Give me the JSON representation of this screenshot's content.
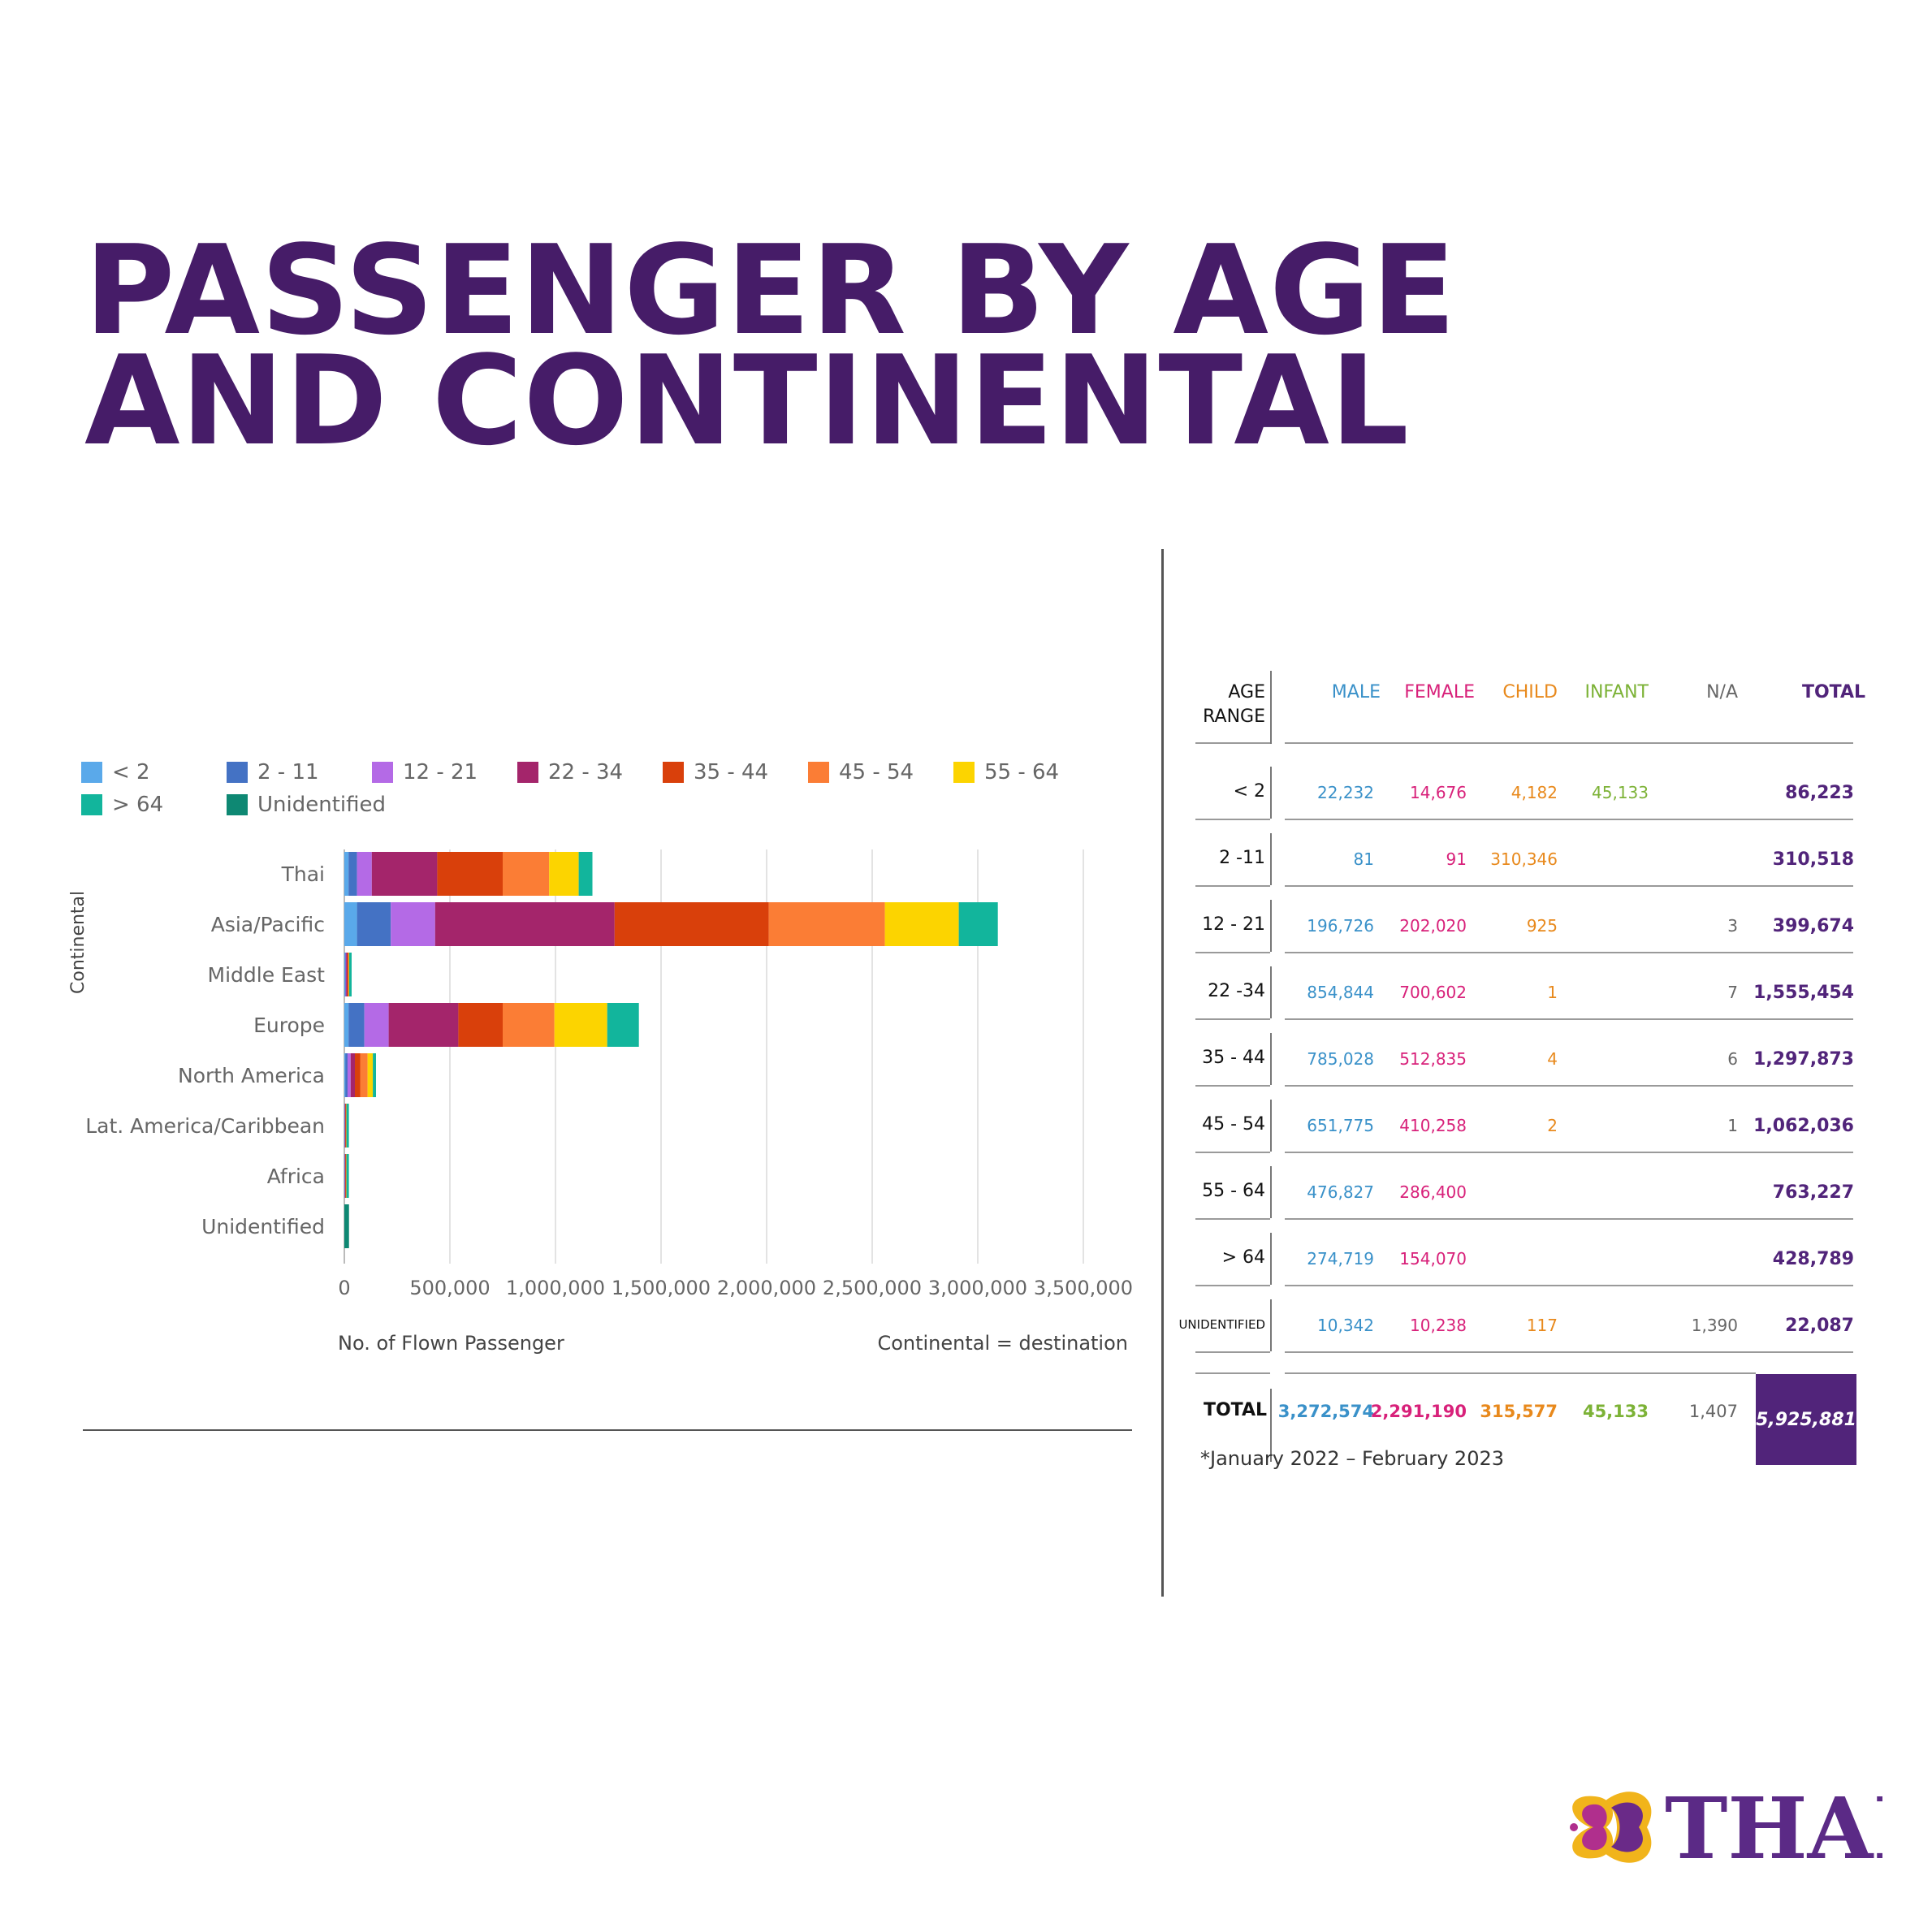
{
  "title_lines": [
    "PASSENGER BY AGE",
    "AND CONTINENTAL"
  ],
  "colors": {
    "brand_purple": "#461c68",
    "male": "#3a91c9",
    "female": "#d8217a",
    "child": "#e8891c",
    "infant": "#7cb236",
    "na": "#666666",
    "total": "#51247a"
  },
  "chart_data": {
    "type": "bar",
    "orientation": "horizontal",
    "stacked": true,
    "ylabel": "Continental",
    "xlabel": "No. of Flown Passenger",
    "xlim": [
      0,
      3500000
    ],
    "xticks": [
      "0",
      "500,000",
      "1,000,000",
      "1,500,000",
      "2,000,000",
      "2,500,000",
      "3,000,000",
      "3,500,000"
    ],
    "xtick_values": [
      0,
      500000,
      1000000,
      1500000,
      2000000,
      2500000,
      3000000,
      3500000
    ],
    "legend_position": "top",
    "grid": true,
    "categories": [
      "Thai",
      "Asia/Pacific",
      "Middle East",
      "Europe",
      "North America",
      "Lat. America/Caribbean",
      "Africa",
      "Unidentified"
    ],
    "series": [
      {
        "name": "< 2",
        "color": "#5aa9ea",
        "values": [
          20000,
          60000,
          3000,
          20000,
          5000,
          1000,
          1000,
          0
        ]
      },
      {
        "name": "2 - 11",
        "color": "#4472c4",
        "values": [
          40000,
          160000,
          3000,
          75000,
          10000,
          1000,
          1000,
          0
        ]
      },
      {
        "name": "12 - 21",
        "color": "#b46ae6",
        "values": [
          70000,
          210000,
          3000,
          115000,
          15000,
          1000,
          1000,
          0
        ]
      },
      {
        "name": "22 - 34",
        "color": "#a4256b",
        "values": [
          310000,
          850000,
          5000,
          330000,
          20000,
          2000,
          2000,
          0
        ]
      },
      {
        "name": "35 - 44",
        "color": "#d9400b",
        "values": [
          310000,
          730000,
          4000,
          210000,
          25000,
          2000,
          2000,
          0
        ]
      },
      {
        "name": "45 - 54",
        "color": "#fb7d35",
        "values": [
          220000,
          550000,
          3000,
          245000,
          35000,
          2000,
          2000,
          0
        ]
      },
      {
        "name": "55 - 64",
        "color": "#fcd400",
        "values": [
          140000,
          350000,
          2000,
          250000,
          25000,
          1000,
          1000,
          0
        ]
      },
      {
        "name": "> 64",
        "color": "#12b59c",
        "values": [
          65000,
          185000,
          1000,
          150000,
          15000,
          1000,
          1000,
          0
        ]
      },
      {
        "name": "Unidentified",
        "color": "#0e8873",
        "values": [
          0,
          0,
          0,
          0,
          0,
          0,
          0,
          22087
        ]
      }
    ]
  },
  "chart_notes": {
    "destination_note": "Continental = destination"
  },
  "table": {
    "headers": {
      "age_range_line1": "AGE",
      "age_range_line2": "RANGE",
      "male": "MALE",
      "female": "FEMALE",
      "child": "CHILD",
      "infant": "INFANT",
      "na": "N/A",
      "total": "TOTAL"
    },
    "rows": [
      {
        "label": "< 2",
        "male": "22,232",
        "female": "14,676",
        "child": "4,182",
        "infant": "45,133",
        "na": "",
        "total": "86,223"
      },
      {
        "label": "2 -11",
        "male": "81",
        "female": "91",
        "child": "310,346",
        "infant": "",
        "na": "",
        "total": "310,518"
      },
      {
        "label": "12 - 21",
        "male": "196,726",
        "female": "202,020",
        "child": "925",
        "infant": "",
        "na": "3",
        "total": "399,674"
      },
      {
        "label": "22 -34",
        "male": "854,844",
        "female": "700,602",
        "child": "1",
        "infant": "",
        "na": "7",
        "total": "1,555,454"
      },
      {
        "label": "35 - 44",
        "male": "785,028",
        "female": "512,835",
        "child": "4",
        "infant": "",
        "na": "6",
        "total": "1,297,873"
      },
      {
        "label": "45 - 54",
        "male": "651,775",
        "female": "410,258",
        "child": "2",
        "infant": "",
        "na": "1",
        "total": "1,062,036"
      },
      {
        "label": "55 - 64",
        "male": "476,827",
        "female": "286,400",
        "child": "",
        "infant": "",
        "na": "",
        "total": "763,227"
      },
      {
        "label": "> 64",
        "male": "274,719",
        "female": "154,070",
        "child": "",
        "infant": "",
        "na": "",
        "total": "428,789"
      },
      {
        "label": "UNIDENTIFIED",
        "male": "10,342",
        "female": "10,238",
        "child": "117",
        "infant": "",
        "na": "1,390",
        "total": "22,087"
      }
    ],
    "total_row": {
      "label": "TOTAL",
      "male": "3,272,574",
      "female": "2,291,190",
      "child": "315,577",
      "infant": "45,133",
      "na": "1,407",
      "total": "5,925,881"
    },
    "footnote": "*January 2022 – February 2023"
  },
  "logo": {
    "text": "THAI",
    "icon": "thai-orchid-logo-icon"
  }
}
